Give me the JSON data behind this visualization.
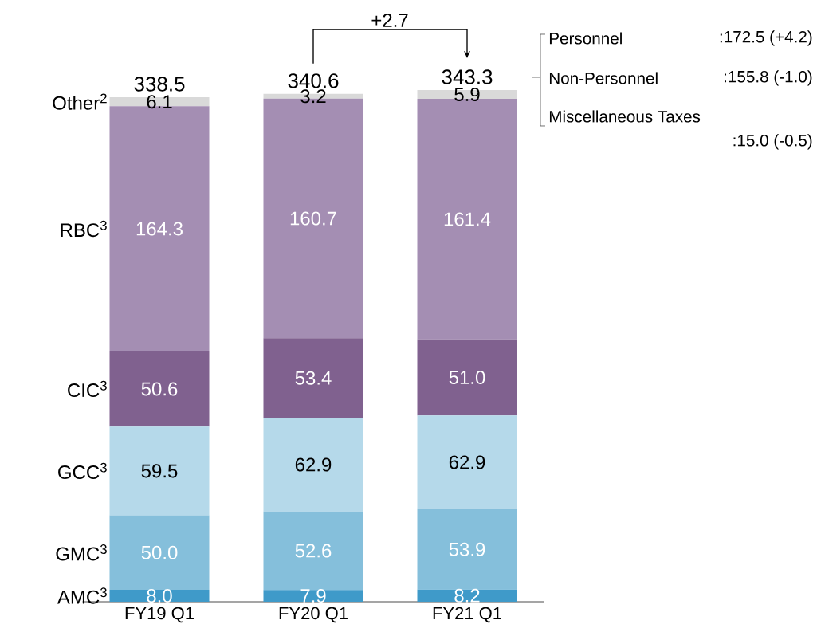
{
  "chart_data": {
    "type": "bar",
    "stacked": true,
    "categories": [
      "FY19 Q1",
      "FY20 Q1",
      "FY21 Q1"
    ],
    "series": [
      {
        "name": "AMC$^{3}$",
        "color": "#3f9ac9",
        "values": [
          8.0,
          7.9,
          8.2
        ],
        "value_labels": [
          "8.0",
          "7.9",
          "8.2"
        ]
      },
      {
        "name": "GMC$^{3}$",
        "color": "#85bfdb",
        "values": [
          50.0,
          52.6,
          53.9
        ],
        "value_labels": [
          "50.0",
          "52.6",
          "53.9"
        ]
      },
      {
        "name": "GCC$^{3}$",
        "color": "#b5d9ea",
        "values": [
          59.5,
          62.9,
          62.9
        ],
        "value_labels": [
          "59.5",
          "62.9",
          "62.9"
        ]
      },
      {
        "name": "CIC$^{3}$",
        "color": "#80618f",
        "values": [
          50.6,
          53.4,
          51.0
        ],
        "value_labels": [
          "50.6",
          "53.4",
          "51.0"
        ]
      },
      {
        "name": "RBC$^{3}$",
        "color": "#a48eb3",
        "values": [
          164.3,
          160.7,
          161.4
        ],
        "value_labels": [
          "164.3",
          "160.7",
          "161.4"
        ]
      },
      {
        "name": "Other$^{2}$",
        "color": "#d9d9d9",
        "values": [
          6.1,
          3.2,
          5.9
        ],
        "value_labels": [
          "6.1",
          "3.2",
          "5.9"
        ]
      }
    ],
    "totals": [
      "338.5",
      "340.6",
      "343.3"
    ],
    "annotations": [
      "+2.7",
      "Personnel",
      ":172.5 (+4.2)",
      "Non-Personnel",
      ":155.8 (-1.0)",
      "Miscellaneous Taxes",
      ":15.0 (-0.5)"
    ]
  }
}
